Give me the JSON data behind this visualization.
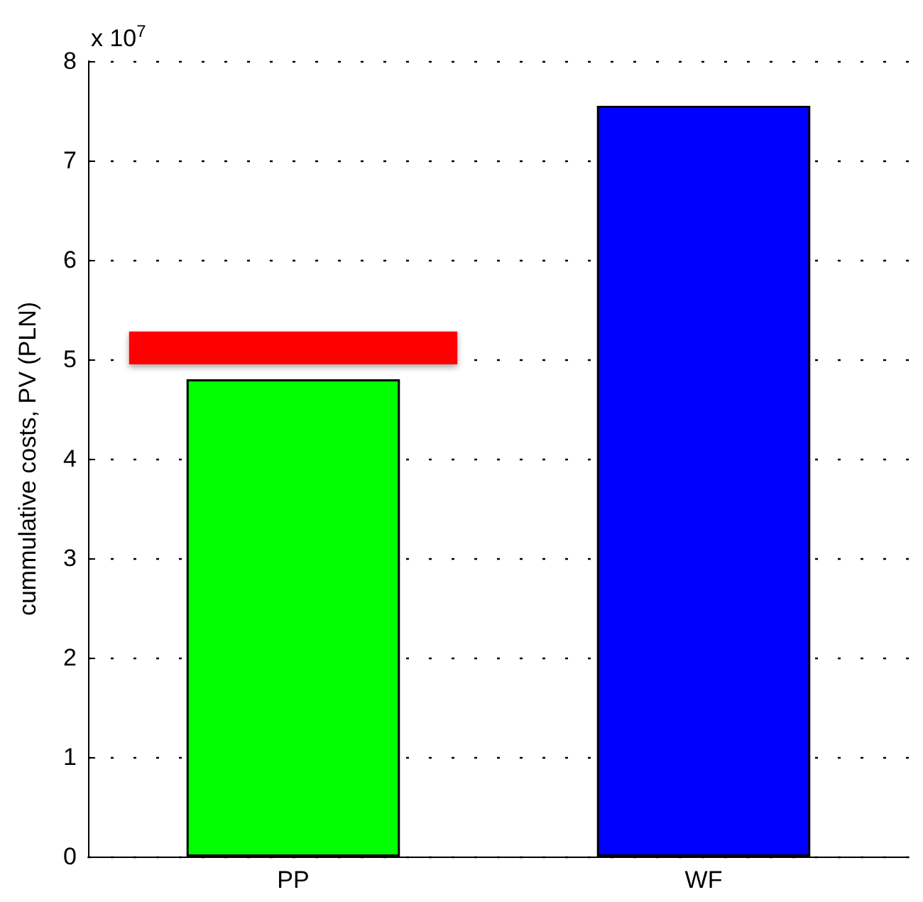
{
  "chart_data": {
    "type": "bar",
    "ylabel": "cummulative costs, PV (PLN)",
    "categories": [
      "PP",
      "WF"
    ],
    "series": [
      {
        "colors": [
          "#00ff00",
          "#0000ff"
        ],
        "values": [
          4.8,
          7.55
        ]
      },
      {
        "color": "#ff0000",
        "base": [
          4.95,
          null
        ],
        "values": [
          0.33,
          null
        ]
      }
    ],
    "ylim": [
      0,
      8
    ],
    "yticks": [
      0,
      1,
      2,
      3,
      4,
      5,
      6,
      7,
      8
    ],
    "grid": "y",
    "annotations": [
      "x 10$^{7}$"
    ]
  }
}
